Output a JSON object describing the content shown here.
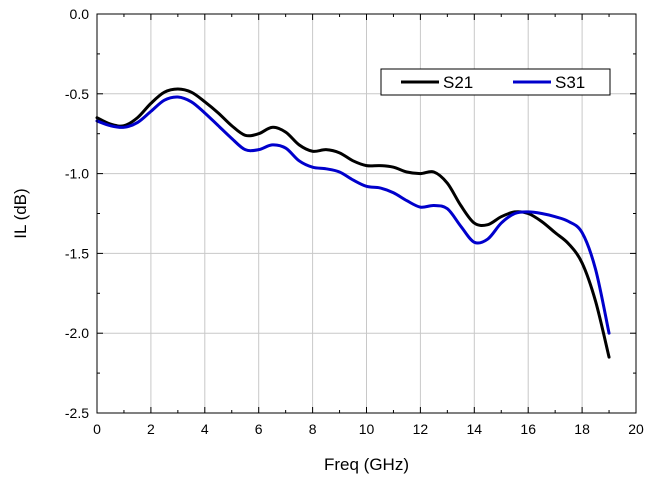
{
  "chart_data": {
    "type": "line",
    "title": "",
    "xlabel": "Freq (GHz)",
    "ylabel": "IL (dB)",
    "xlim": [
      0,
      20
    ],
    "ylim": [
      -2.5,
      0.0
    ],
    "x_ticks": [
      0,
      2,
      4,
      6,
      8,
      10,
      12,
      14,
      16,
      18,
      20
    ],
    "x_tick_labels": [
      "0",
      "2",
      "4",
      "6",
      "8",
      "10",
      "12",
      "14",
      "16",
      "18",
      "20"
    ],
    "y_ticks": [
      0.0,
      -0.5,
      -1.0,
      -1.5,
      -2.0,
      -2.5
    ],
    "y_tick_labels": [
      "0.0",
      "-0.5",
      "-1.0",
      "-1.5",
      "-2.0",
      "-2.5"
    ],
    "grid": true,
    "legend_position": "top-right",
    "series": [
      {
        "name": "S21",
        "color": "#000000",
        "x": [
          0,
          0.5,
          1,
          1.5,
          2,
          2.5,
          3,
          3.5,
          4,
          4.5,
          5,
          5.5,
          6,
          6.5,
          7,
          7.5,
          8,
          8.5,
          9,
          9.5,
          10,
          10.5,
          11,
          11.5,
          12,
          12.5,
          13,
          13.5,
          14,
          14.5,
          15,
          15.5,
          16,
          16.5,
          17,
          17.5,
          18,
          18.5,
          19
        ],
        "values": [
          -0.65,
          -0.69,
          -0.7,
          -0.65,
          -0.56,
          -0.49,
          -0.47,
          -0.49,
          -0.55,
          -0.62,
          -0.7,
          -0.76,
          -0.75,
          -0.71,
          -0.74,
          -0.82,
          -0.86,
          -0.85,
          -0.87,
          -0.92,
          -0.95,
          -0.95,
          -0.96,
          -0.99,
          -1.0,
          -0.99,
          -1.06,
          -1.2,
          -1.31,
          -1.32,
          -1.27,
          -1.24,
          -1.25,
          -1.3,
          -1.37,
          -1.44,
          -1.56,
          -1.8,
          -2.15
        ]
      },
      {
        "name": "S31",
        "color": "#0000cc",
        "x": [
          0,
          0.5,
          1,
          1.5,
          2,
          2.5,
          3,
          3.5,
          4,
          4.5,
          5,
          5.5,
          6,
          6.5,
          7,
          7.5,
          8,
          8.5,
          9,
          9.5,
          10,
          10.5,
          11,
          11.5,
          12,
          12.5,
          13,
          13.5,
          14,
          14.5,
          15,
          15.5,
          16,
          16.5,
          17,
          17.5,
          18,
          18.5,
          19
        ],
        "values": [
          -0.67,
          -0.7,
          -0.71,
          -0.68,
          -0.61,
          -0.54,
          -0.52,
          -0.55,
          -0.62,
          -0.7,
          -0.78,
          -0.85,
          -0.85,
          -0.82,
          -0.84,
          -0.92,
          -0.96,
          -0.97,
          -0.99,
          -1.04,
          -1.08,
          -1.09,
          -1.12,
          -1.17,
          -1.21,
          -1.2,
          -1.22,
          -1.33,
          -1.43,
          -1.41,
          -1.31,
          -1.25,
          -1.24,
          -1.25,
          -1.27,
          -1.3,
          -1.37,
          -1.6,
          -2.0
        ]
      }
    ]
  }
}
